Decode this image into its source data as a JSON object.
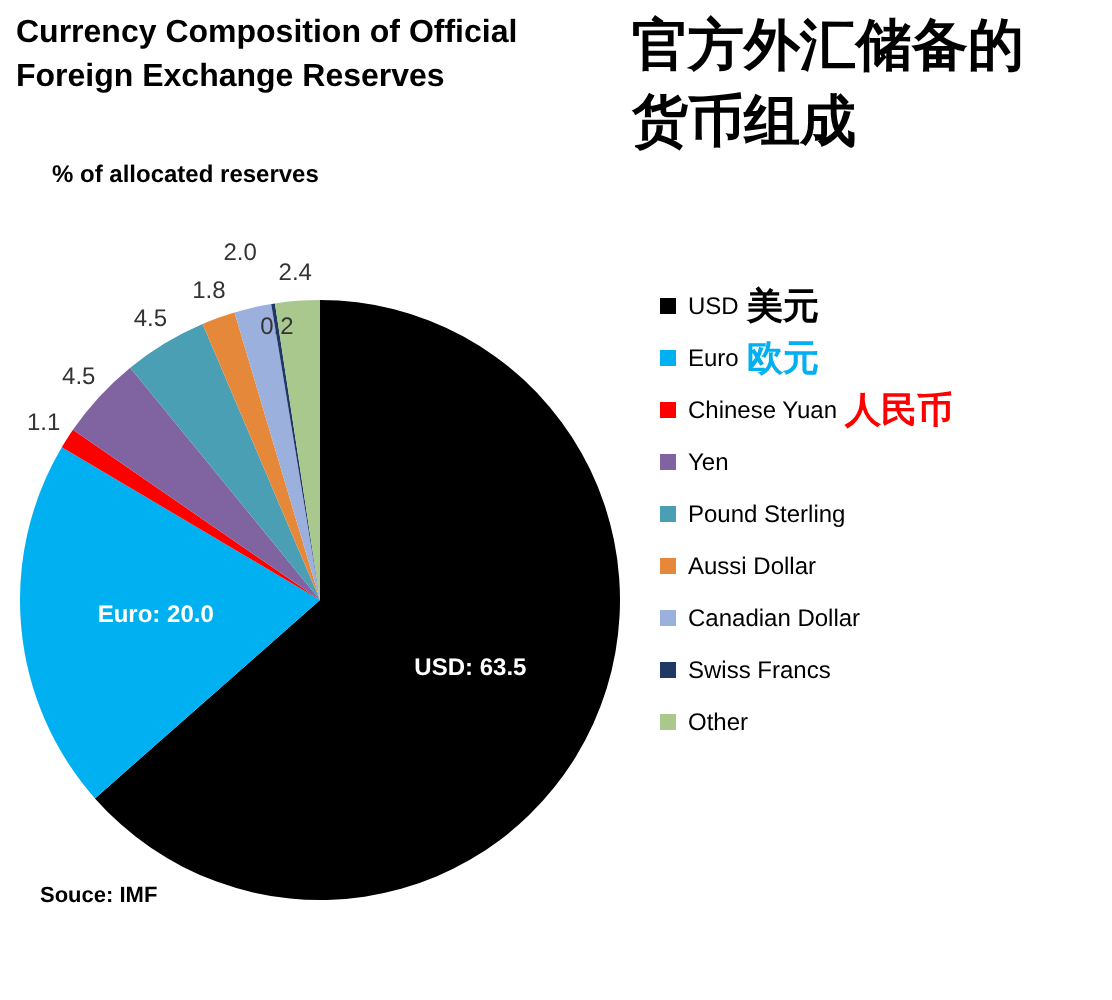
{
  "chart_data": {
    "type": "pie",
    "title": "Currency Composition of Official Foreign Exchange Reserves",
    "subtitle": "% of allocated reserves",
    "categories": [
      "USD",
      "Euro",
      "Chinese Yuan",
      "Yen",
      "Pound Sterling",
      "Aussi Dollar",
      "Canadian Dollar",
      "Swiss Francs",
      "Other"
    ],
    "values": [
      63.5,
      20.0,
      1.1,
      4.5,
      4.5,
      1.8,
      2.0,
      0.2,
      2.4
    ],
    "colors": [
      "#000000",
      "#00b0f0",
      "#ff0000",
      "#8064a2",
      "#4a9fb5",
      "#e6883a",
      "#9bb0dc",
      "#1f3864",
      "#a9c88e"
    ],
    "value_labels": [
      "USD: 63.5",
      "Euro: 20.0",
      "1.1",
      "4.5",
      "4.5",
      "1.8",
      "2.0",
      "0.2",
      "2.4"
    ],
    "legend": "right",
    "annotations": [
      "官方外汇储备的货币组成",
      "Souce: IMF",
      {
        "text": "美元",
        "x": "USD"
      },
      {
        "text": "欧元",
        "x": "Euro"
      },
      {
        "text": "人民币",
        "x": "Chinese Yuan"
      }
    ]
  }
}
